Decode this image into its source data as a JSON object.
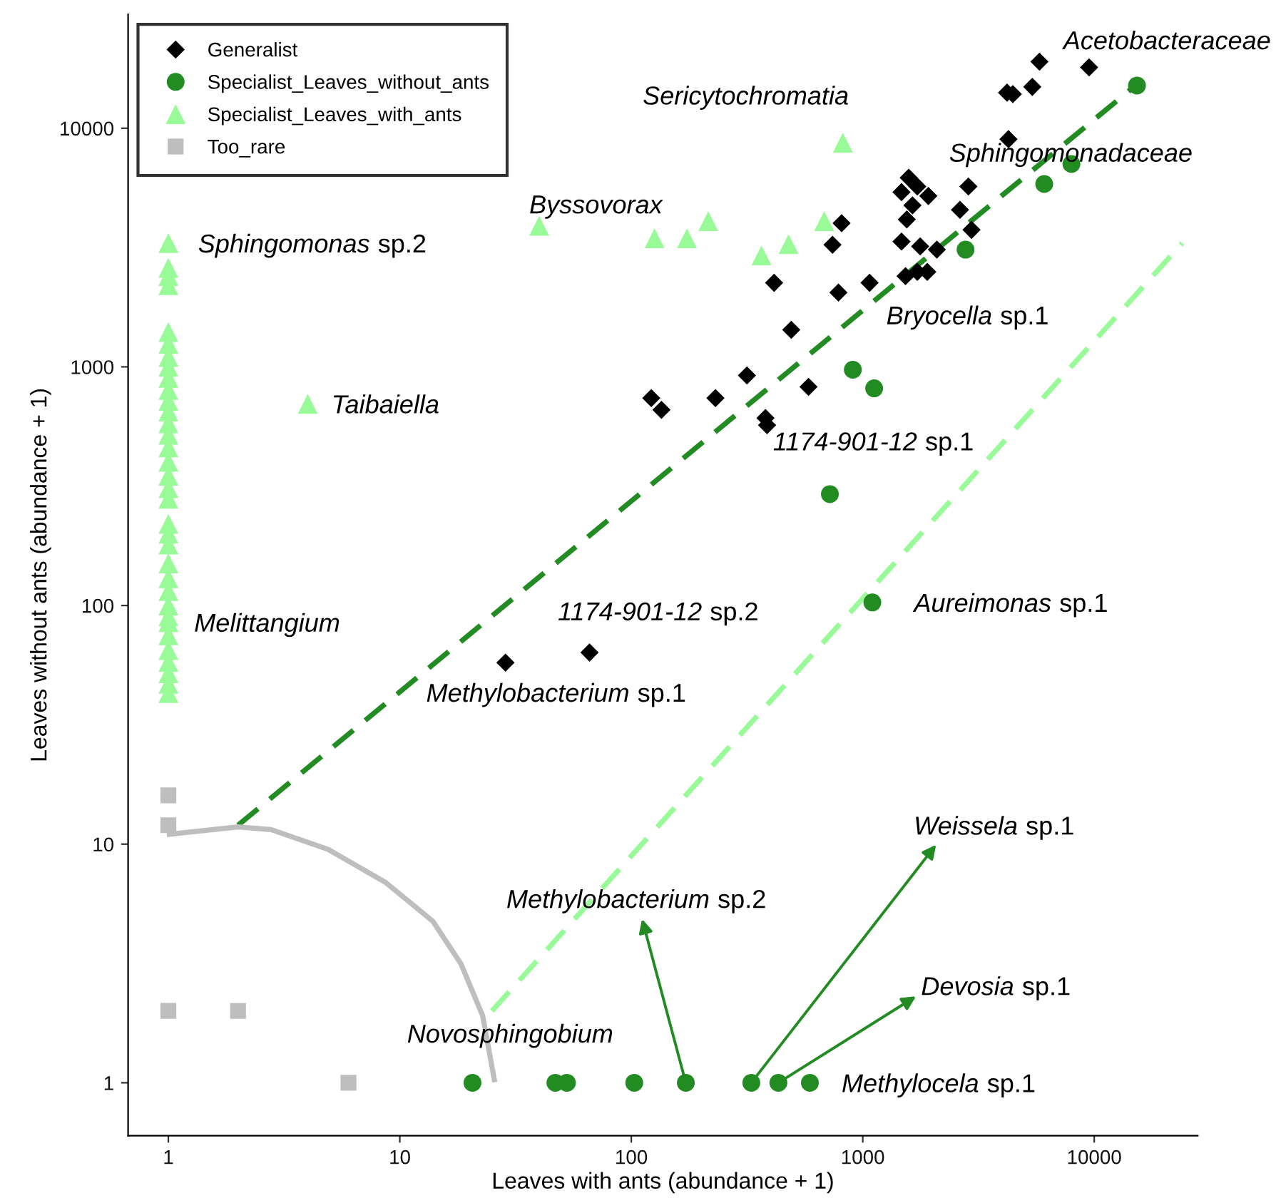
{
  "chart_data": {
    "type": "scatter",
    "xlabel": "Leaves with ants (abundance + 1)",
    "ylabel": "Leaves without ants (abundance + 1)",
    "log": "xy",
    "xlim": [
      0.67,
      28000
    ],
    "ylim": [
      0.6,
      30000
    ],
    "xticks": [
      1,
      10,
      100,
      1000,
      10000
    ],
    "yticks": [
      1,
      10,
      100,
      1000,
      10000
    ],
    "grid": false,
    "legend": "top left",
    "series": [
      {
        "name": "Generalist",
        "marker": "diamond",
        "color": "#000000",
        "x": [
          5800,
          9500,
          4200,
          4450,
          5400,
          4260,
          1580,
          1720,
          1470,
          1920,
          2860,
          1640,
          2630,
          1550,
          810,
          2950,
          740,
          1470,
          1770,
          2090,
          1530,
          1720,
          1900,
          414,
          785,
          1070,
          491,
          316,
          583,
          122,
          135,
          231,
          380,
          386,
          28.6,
          66
        ],
        "values": [
          19000,
          18000,
          14100,
          13900,
          14900,
          9000,
          6200,
          5700,
          5400,
          5200,
          5700,
          4750,
          4550,
          4150,
          4000,
          3750,
          3250,
          3350,
          3200,
          3100,
          2400,
          2500,
          2500,
          2250,
          2050,
          2250,
          1430,
          920,
          825,
          740,
          660,
          740,
          610,
          570,
          57.6,
          63.5
        ]
      },
      {
        "name": "Specialist_Leaves_without_ants",
        "marker": "circle",
        "color": "#228b22",
        "x": [
          15300,
          7970,
          6080,
          2780,
          906,
          1120,
          721,
          1100,
          20.6,
          47,
          52.7,
          103,
          172,
          330,
          432,
          591
        ],
        "values": [
          15100,
          7080,
          5840,
          3100,
          973,
          813,
          293,
          103,
          1,
          1,
          1,
          1,
          1,
          1,
          1,
          1
        ]
      },
      {
        "name": "Specialist_Leaves_with_ants",
        "marker": "triangle",
        "color": "#98fb98",
        "x": [
          1,
          1,
          1,
          1,
          1,
          1,
          1,
          1,
          1,
          1,
          1,
          1,
          1,
          1,
          1,
          1,
          1,
          1,
          1,
          1,
          1,
          1,
          1,
          1,
          1,
          1,
          1,
          1,
          1,
          1,
          1,
          1,
          1,
          1,
          4,
          40,
          126,
          174,
          215,
          365,
          478,
          681,
          820
        ],
        "values": [
          3300,
          2600,
          2400,
          2200,
          1400,
          1250,
          1100,
          1000,
          900,
          800,
          720,
          650,
          580,
          520,
          460,
          400,
          350,
          310,
          280,
          220,
          200,
          180,
          150,
          130,
          115,
          100,
          90,
          85,
          75,
          65,
          58,
          52,
          47,
          43,
          700,
          3900,
          3460,
          3460,
          4080,
          2930,
          3270,
          4080,
          8700
        ]
      },
      {
        "name": "Too_rare",
        "marker": "square",
        "color": "#bebebe",
        "x": [
          1,
          1,
          1,
          2,
          6
        ],
        "values": [
          16,
          12,
          2,
          2,
          1
        ]
      },
      {
        "type": "line",
        "line_style": "dashed",
        "color": "#228b22",
        "x": [
          2,
          16200
        ],
        "values": [
          12,
          16000
        ]
      },
      {
        "type": "line",
        "line_style": "dashed",
        "color": "#98fb98",
        "x": [
          25,
          24000
        ],
        "values": [
          2,
          3300
        ]
      },
      {
        "type": "line",
        "line_style": "solid",
        "color": "#bebebe",
        "x": [
          1.01,
          2,
          2.78,
          4.9,
          8.7,
          13.9,
          18.4,
          22.8,
          25.6
        ],
        "values": [
          11,
          11.8,
          11.5,
          9.5,
          6.9,
          4.75,
          3.14,
          1.91,
          1.03
        ]
      }
    ],
    "annotations": [
      {
        "text": "Acetobacteraceae",
        "x": 5800,
        "y": 19000
      },
      {
        "text": "Sericytochromatia",
        "x": 820,
        "y": 8700
      },
      {
        "text": "Sphingomonadaceae",
        "x": 6080,
        "y": 5840
      },
      {
        "text": "Bryocella sp.1",
        "x": 2780,
        "y": 3100
      },
      {
        "text": "Byssovorax",
        "x": 40,
        "y": 3900
      },
      {
        "text": "Sphingomonas sp.2",
        "x": 1,
        "y": 3300
      },
      {
        "text": "Taibaiella",
        "x": 4,
        "y": 700
      },
      {
        "text": "Melittangium",
        "x": 1,
        "y": 85
      },
      {
        "text": "1174-901-12 sp.1",
        "x": 386,
        "y": 570
      },
      {
        "text": "1174-901-12 sp.2",
        "x": 66,
        "y": 63.5
      },
      {
        "text": "Methylobacterium sp.1",
        "x": 28.6,
        "y": 57.6
      },
      {
        "text": "Aureimonas sp.1",
        "x": 1100,
        "y": 103
      },
      {
        "text": "Novosphingobium",
        "x": 20.6,
        "y": 1
      },
      {
        "text": "Methylobacterium sp.2",
        "x": 172,
        "y": 1
      },
      {
        "text": "Weissela sp.1",
        "x": 330,
        "y": 1
      },
      {
        "text": "Devosia sp.1",
        "x": 432,
        "y": 1
      },
      {
        "text": "Methylocela sp.1",
        "x": 591,
        "y": 1
      }
    ]
  }
}
